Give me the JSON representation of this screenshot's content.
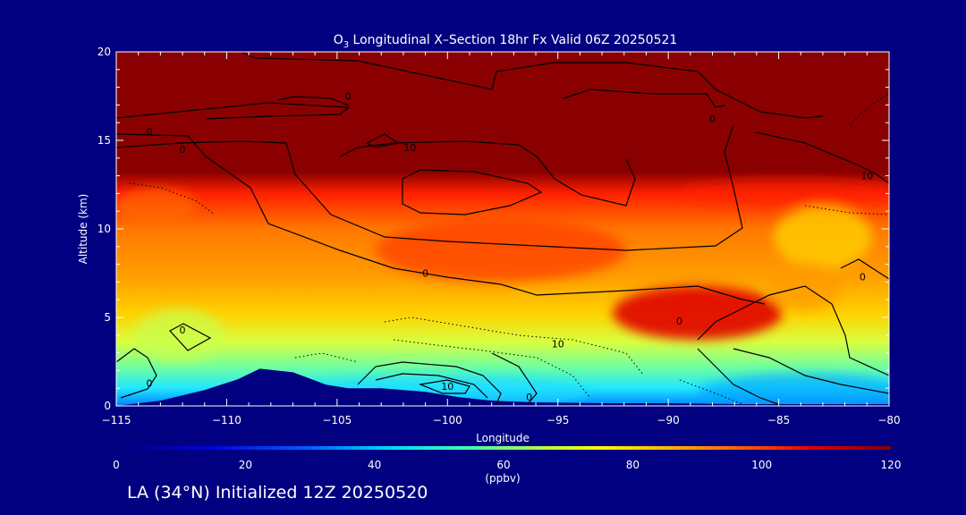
{
  "colors": {
    "background": "#000080",
    "terrain": "#000080",
    "contour": "#000000",
    "text": "#ffffff"
  },
  "chart_data": {
    "type": "heatmap",
    "title_prefix": "O",
    "title_subscript": "3",
    "title_rest": " Longitudinal X–Section 18hr  Fx Valid 06Z 20250521",
    "xlabel": "Longitude",
    "ylabel": "Altitude (km)",
    "xlim": [
      -115,
      -80
    ],
    "ylim": [
      0,
      20
    ],
    "xticks": [
      -115,
      -110,
      -105,
      -100,
      -95,
      -90,
      -85,
      -80
    ],
    "xtick_labels": [
      "−115",
      "−110",
      "−105",
      "−100",
      "−95",
      "−90",
      "−85",
      "−80"
    ],
    "yticks": [
      0,
      5,
      10,
      15,
      20
    ],
    "ytick_labels": [
      "0",
      "5",
      "10",
      "15",
      "20"
    ],
    "colorbar": {
      "range": [
        0,
        120
      ],
      "ticks": [
        0,
        20,
        40,
        60,
        80,
        100,
        120
      ],
      "tick_labels": [
        "0",
        "20",
        "40",
        "60",
        "80",
        "100",
        "120"
      ],
      "units": "(ppbv)"
    },
    "contour_labels": [
      {
        "text": "0",
        "lon": -104.5,
        "alt": 17.5
      },
      {
        "text": "0",
        "lon": -113.5,
        "alt": 15.5
      },
      {
        "text": "0",
        "lon": -112.0,
        "alt": 14.5
      },
      {
        "text": "10",
        "lon": -101.7,
        "alt": 14.6
      },
      {
        "text": "0",
        "lon": -88.0,
        "alt": 16.2
      },
      {
        "text": "10",
        "lon": -81.0,
        "alt": 13.0
      },
      {
        "text": "0",
        "lon": -101.0,
        "alt": 7.5
      },
      {
        "text": "0",
        "lon": -81.2,
        "alt": 7.3
      },
      {
        "text": "0",
        "lon": -112.0,
        "alt": 4.3
      },
      {
        "text": "0",
        "lon": -89.5,
        "alt": 4.8
      },
      {
        "text": "10",
        "lon": -95.0,
        "alt": 3.5
      },
      {
        "text": "0",
        "lon": -113.5,
        "alt": 1.3
      },
      {
        "text": "10",
        "lon": -100.0,
        "alt": 1.1
      },
      {
        "text": "0",
        "lon": -96.3,
        "alt": 0.5
      }
    ],
    "terrain_profile": {
      "lon": [
        -115,
        -113,
        -111,
        -109.5,
        -108.5,
        -107,
        -105.5,
        -104.5,
        -103,
        -101,
        -99.5,
        -98,
        -96,
        -93,
        -90,
        -87,
        -84,
        -82,
        -80
      ],
      "alt": [
        0.0,
        0.3,
        0.9,
        1.5,
        2.1,
        1.9,
        1.2,
        1.0,
        1.0,
        0.8,
        0.5,
        0.3,
        0.2,
        0.15,
        0.15,
        0.1,
        0.1,
        0.1,
        0.1
      ]
    }
  },
  "footer": {
    "text": "LA (34°N) Initialized 12Z 20250520"
  }
}
